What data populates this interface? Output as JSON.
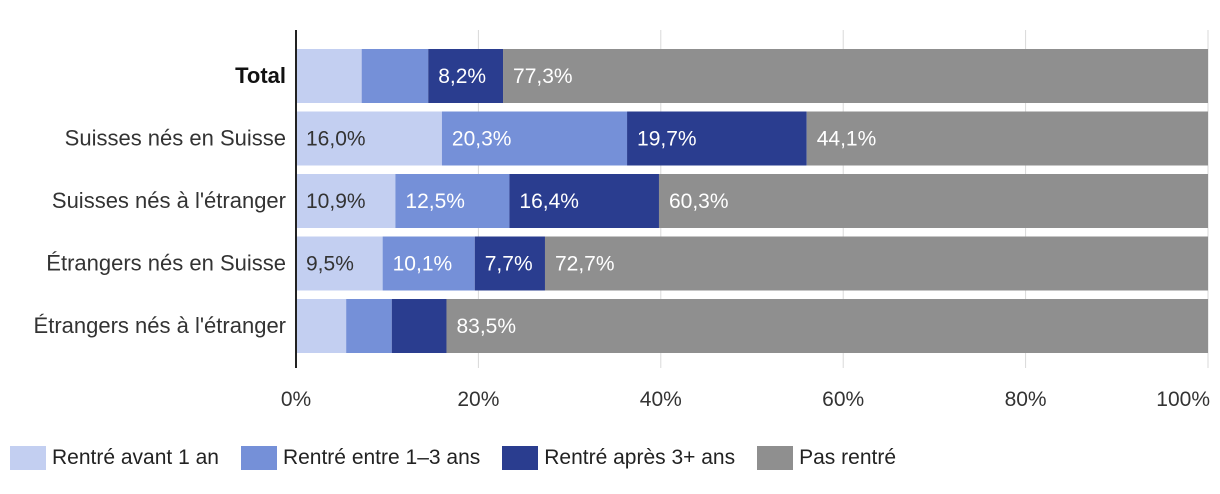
{
  "chart_data": {
    "type": "stacked-bar-horizontal",
    "title": "",
    "xlabel": "",
    "ylabel": "",
    "xlim": [
      0,
      100
    ],
    "x_ticks": [
      0,
      20,
      40,
      60,
      80,
      100
    ],
    "x_tick_labels": [
      "0%",
      "20%",
      "40%",
      "60%",
      "80%",
      "100%"
    ],
    "grid": true,
    "legend_position": "bottom-left",
    "categories": [
      "Total",
      "Suisses nés en Suisse",
      "Suisses nés à l'étranger",
      "Étrangers nés en Suisse",
      "Étrangers nés à l'étranger"
    ],
    "bold_categories": [
      "Total"
    ],
    "series": [
      {
        "name": "Rentré avant 1 an",
        "color": "#c3cff1",
        "label_color": "#333333",
        "values": [
          7.2,
          16.0,
          10.9,
          9.5,
          5.5
        ],
        "labels": [
          "",
          "16,0%",
          "10,9%",
          "9,5%",
          ""
        ]
      },
      {
        "name": "Rentré entre 1–3 ans",
        "color": "#7590d8",
        "label_color": "#ffffff",
        "values": [
          7.3,
          20.3,
          12.5,
          10.1,
          5.0
        ],
        "labels": [
          "",
          "20,3%",
          "12,5%",
          "10,1%",
          ""
        ]
      },
      {
        "name": "Rentré après 3+ ans",
        "color": "#2a3d8f",
        "label_color": "#ffffff",
        "values": [
          8.2,
          19.7,
          16.4,
          7.7,
          6.0
        ],
        "labels": [
          "8,2%",
          "19,7%",
          "16,4%",
          "7,7%",
          ""
        ]
      },
      {
        "name": "Pas rentré",
        "color": "#8f8f8f",
        "label_color": "#ffffff",
        "values": [
          77.3,
          44.1,
          60.3,
          72.7,
          83.5
        ],
        "labels": [
          "77,3%",
          "44,1%",
          "60,3%",
          "72,7%",
          "83,5%"
        ]
      }
    ]
  }
}
